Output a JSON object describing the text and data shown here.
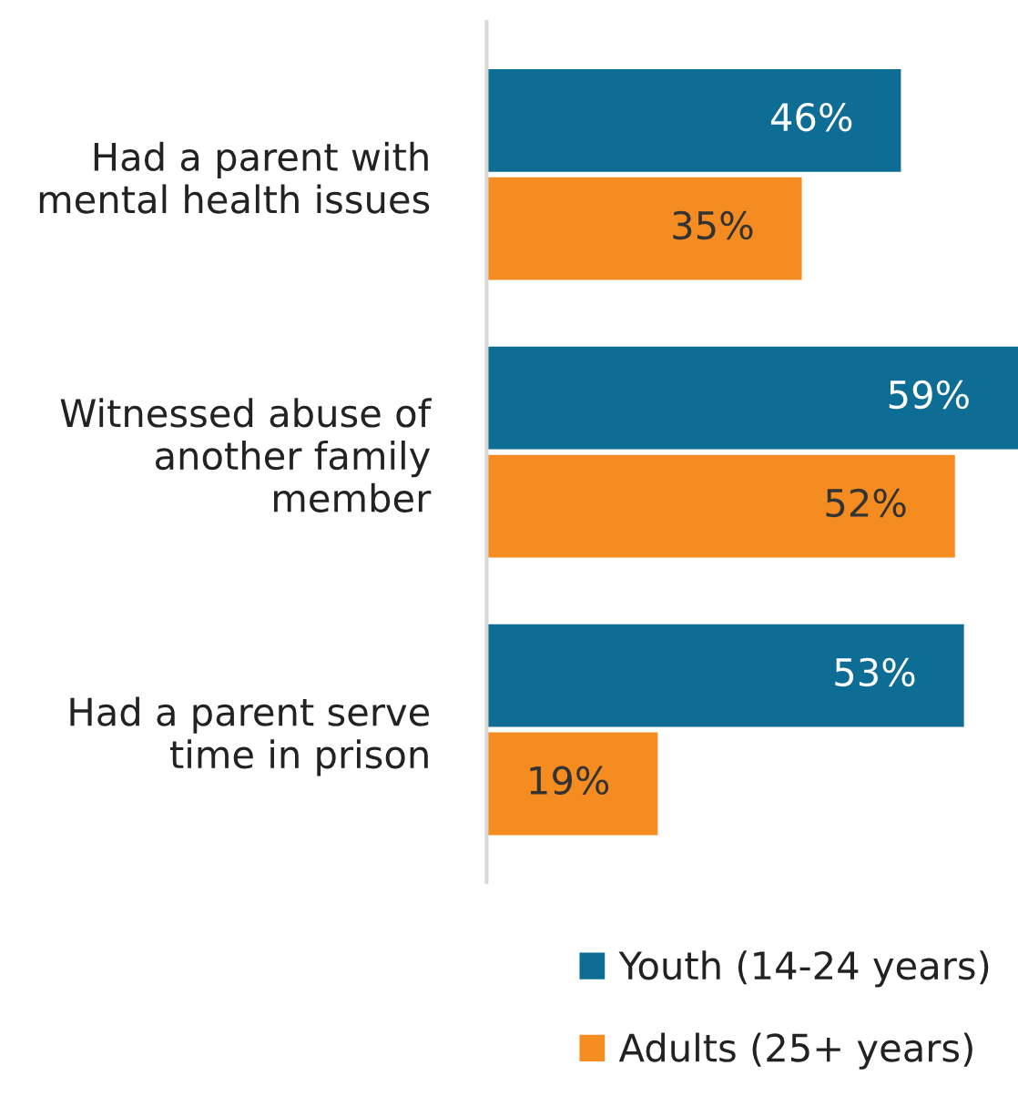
{
  "chart_data": {
    "type": "bar",
    "orientation": "horizontal",
    "categories": [
      "Had a parent with\nmental health issues",
      "Witnessed abuse of\nanother family\nmember",
      "Had a parent serve\ntime in prison"
    ],
    "series": [
      {
        "name": "Youth (14-24 years)",
        "color": "#0e6d94",
        "values": [
          46,
          59,
          53
        ],
        "value_labels": [
          "46%",
          "59%",
          "53%"
        ]
      },
      {
        "name": "Adults (25+ years)",
        "color": "#f58c22",
        "values": [
          35,
          52,
          19
        ],
        "value_labels": [
          "35%",
          "52%",
          "19%"
        ]
      }
    ],
    "legend": "bottom right"
  }
}
